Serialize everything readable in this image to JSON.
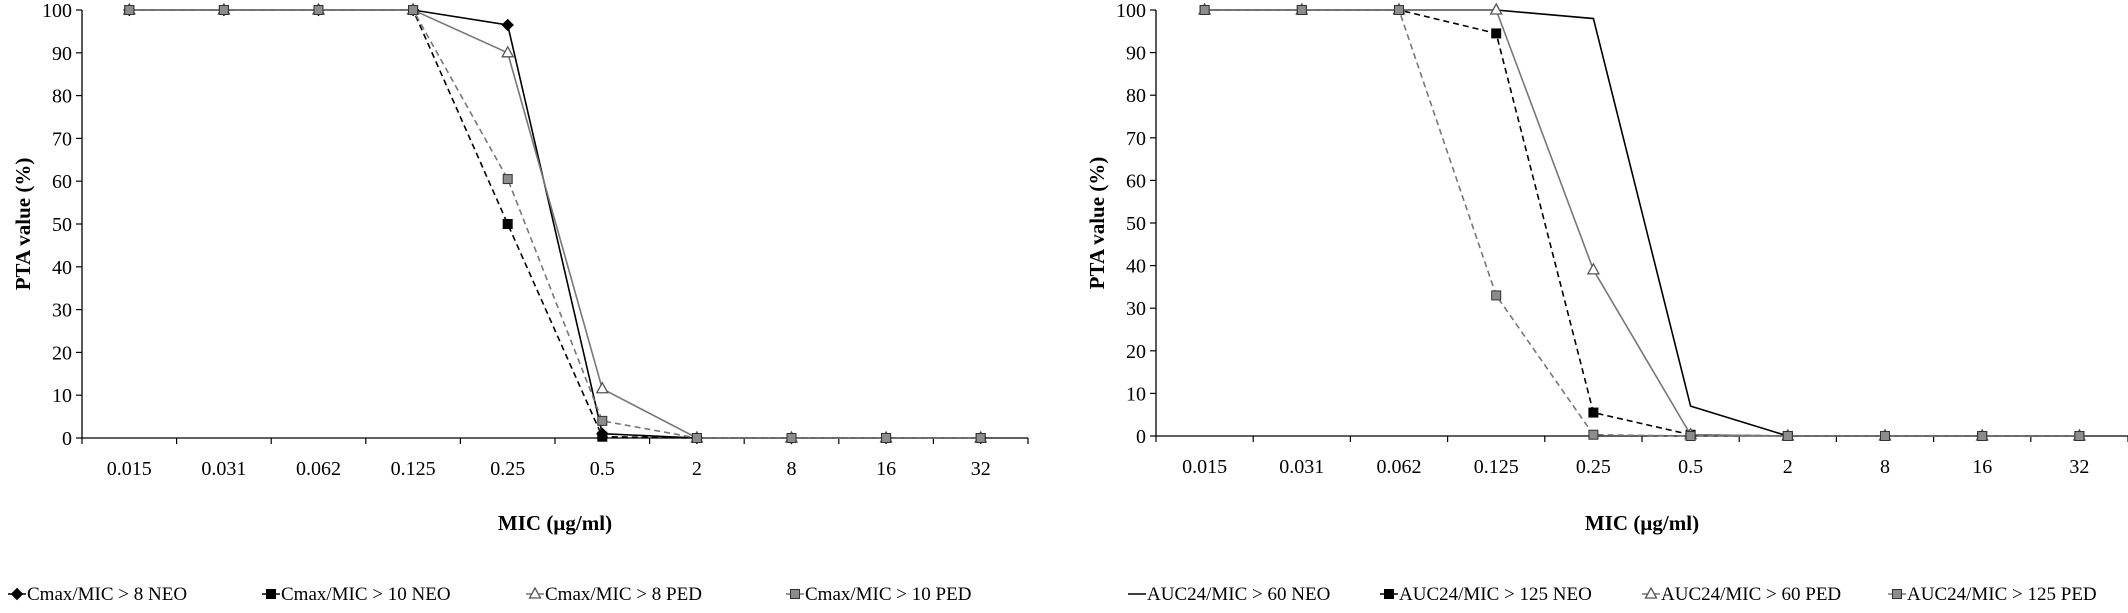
{
  "chart_data": [
    {
      "type": "line",
      "xlabel": "MIC (µg/ml)",
      "ylabel": "PTA value (%)",
      "categories": [
        "0.015",
        "0.031",
        "0.062",
        "0.125",
        "0.25",
        "0.5",
        "2",
        "8",
        "16",
        "32"
      ],
      "yticks": [
        "0",
        "10",
        "20",
        "30",
        "40",
        "50",
        "60",
        "70",
        "80",
        "90",
        "100"
      ],
      "ylim": [
        0,
        100
      ],
      "grid": false,
      "legend_position": "bottom",
      "series": [
        {
          "name": "Cmax/MIC > 8 NEO",
          "values": [
            100,
            100,
            100,
            100,
            96.5,
            1,
            0,
            0,
            0,
            0
          ],
          "color": "#000000",
          "dash": false,
          "marker": "diamond-filled"
        },
        {
          "name": "Cmax/MIC > 10 NEO",
          "values": [
            100,
            100,
            100,
            100,
            50,
            0.3,
            0,
            0,
            0,
            0
          ],
          "color": "#000000",
          "dash": true,
          "marker": "square-filled"
        },
        {
          "name": "Cmax/MIC > 8 PED",
          "values": [
            100,
            100,
            100,
            100,
            90,
            11.5,
            0,
            0,
            0,
            0
          ],
          "color": "#777777",
          "dash": false,
          "marker": "triangle-open"
        },
        {
          "name": "Cmax/MIC > 10 PED",
          "values": [
            100,
            100,
            100,
            100,
            60.5,
            4,
            0,
            0,
            0,
            0
          ],
          "color": "#777777",
          "dash": true,
          "marker": "square-gray"
        }
      ]
    },
    {
      "type": "line",
      "xlabel": "MIC (µg/ml)",
      "ylabel": "PTA value (%)",
      "categories": [
        "0.015",
        "0.031",
        "0.062",
        "0.125",
        "0.25",
        "0.5",
        "2",
        "8",
        "16",
        "32"
      ],
      "yticks": [
        "0",
        "10",
        "20",
        "30",
        "40",
        "50",
        "60",
        "70",
        "80",
        "90",
        "100"
      ],
      "ylim": [
        0,
        100
      ],
      "grid": false,
      "legend_position": "bottom",
      "series": [
        {
          "name": "AUC24/MIC > 60 NEO",
          "values": [
            100,
            100,
            100,
            100,
            98,
            7,
            0,
            0,
            0,
            0
          ],
          "color": "#000000",
          "dash": false,
          "marker": "none"
        },
        {
          "name": "AUC24/MIC > 125 NEO",
          "values": [
            100,
            100,
            100,
            94.5,
            5.5,
            0.3,
            0,
            0,
            0,
            0
          ],
          "color": "#000000",
          "dash": true,
          "marker": "square-filled"
        },
        {
          "name": "AUC24/MIC > 60 PED",
          "values": [
            100,
            100,
            100,
            100,
            39,
            0.3,
            0,
            0,
            0,
            0
          ],
          "color": "#777777",
          "dash": false,
          "marker": "triangle-open"
        },
        {
          "name": "AUC24/MIC > 125 PED",
          "values": [
            100,
            100,
            100,
            33,
            0.3,
            0,
            0,
            0,
            0,
            0
          ],
          "color": "#777777",
          "dash": true,
          "marker": "square-gray"
        }
      ]
    }
  ]
}
